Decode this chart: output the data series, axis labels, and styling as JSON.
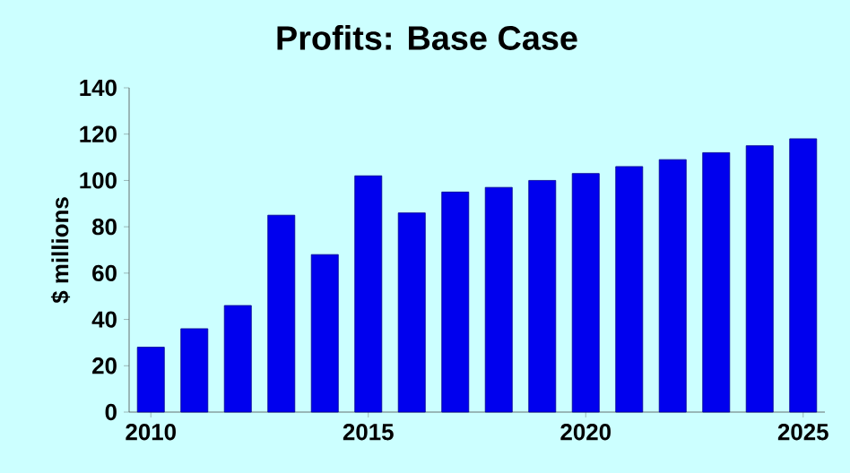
{
  "chart_data": {
    "type": "bar",
    "title": "Profits: Base Case",
    "ylabel": "$ millions",
    "x": [
      2010,
      2011,
      2012,
      2013,
      2014,
      2015,
      2016,
      2017,
      2018,
      2019,
      2020,
      2021,
      2022,
      2023,
      2024,
      2025
    ],
    "values": [
      28,
      36,
      46,
      85,
      68,
      102,
      86,
      95,
      97,
      100,
      103,
      106,
      109,
      112,
      115,
      118
    ],
    "color": "#0000ee",
    "xlim": [
      2009.5,
      2025.5
    ],
    "xticks": [
      2010,
      2015,
      2020,
      2025
    ],
    "ylim": [
      0,
      140
    ],
    "yticks": [
      0,
      20,
      40,
      60,
      80,
      100,
      120,
      140
    ]
  }
}
